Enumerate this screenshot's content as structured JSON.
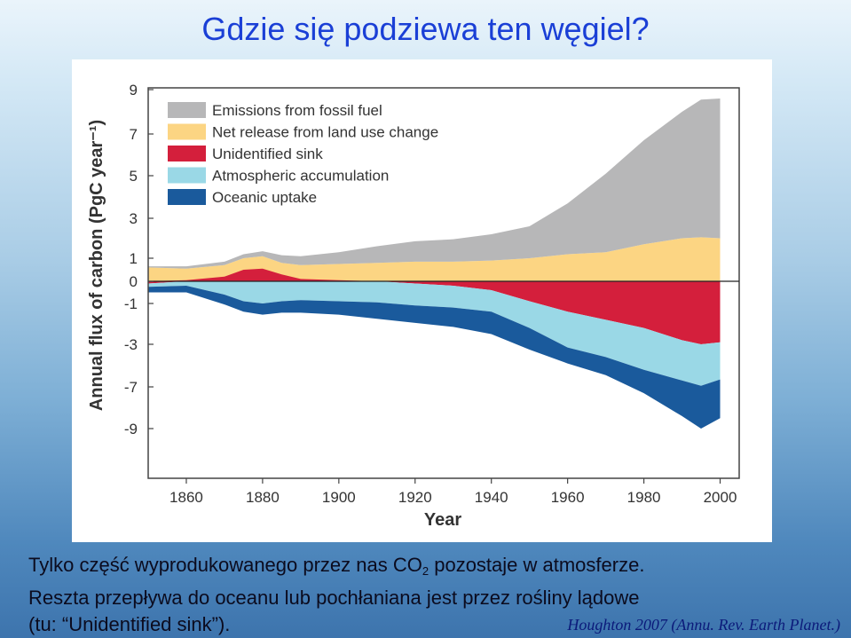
{
  "slide": {
    "title": "Gdzie się podziewa ten węgiel?",
    "caption_line1_before": "Tylko część wyprodukowanego przez nas CO",
    "caption_line1_sub": "2",
    "caption_line1_after": " pozostaje w atmosferze.",
    "caption_line2": "Reszta przepływa do oceanu lub pochłaniana jest przez rośliny lądowe",
    "caption_line3": "(tu: “Unidentified sink”).",
    "citation": "Houghton 2007 (Annu. Rev. Earth Planet.)"
  },
  "chart_data": {
    "type": "area",
    "xlabel": "Year",
    "ylabel": "Annual flux of carbon (PgC year⁻¹)",
    "xlim": [
      1850,
      2005
    ],
    "x_ticks": [
      1860,
      1880,
      1900,
      1920,
      1940,
      1960,
      1980,
      2000
    ],
    "y_ticks": [
      9,
      7,
      5,
      3,
      1,
      0,
      -1,
      -3,
      -7,
      -9
    ],
    "legend_position": "top-left",
    "x": [
      1850,
      1860,
      1870,
      1875,
      1880,
      1885,
      1890,
      1900,
      1910,
      1920,
      1930,
      1940,
      1950,
      1960,
      1970,
      1980,
      1990,
      1995,
      2000
    ],
    "series": [
      {
        "name": "Emissions from fossil fuel",
        "color": "#b7b7b8",
        "values": [
          0.05,
          0.1,
          0.15,
          0.2,
          0.25,
          0.35,
          0.4,
          0.55,
          0.8,
          1.0,
          1.1,
          1.3,
          1.6,
          2.5,
          3.8,
          5.0,
          6.0,
          6.5,
          6.6
        ]
      },
      {
        "name": "Net release from land use change",
        "color": "#fcd583",
        "values": [
          0.6,
          0.55,
          0.7,
          1.0,
          1.1,
          0.8,
          0.7,
          0.75,
          0.8,
          0.85,
          0.85,
          0.9,
          1.0,
          1.2,
          1.3,
          1.7,
          2.0,
          2.05,
          2.0
        ]
      },
      {
        "name": "Unidentified sink",
        "color": "#d41f3c",
        "values": [
          -0.1,
          0.05,
          0.2,
          0.5,
          0.55,
          0.3,
          0.1,
          0.05,
          0.0,
          -0.1,
          -0.2,
          -0.4,
          -0.9,
          -1.4,
          -1.8,
          -2.2,
          -2.8,
          -3.0,
          -2.9
        ]
      },
      {
        "name": "Atmospheric accumulation",
        "color": "#9ad8e6",
        "values": [
          -0.15,
          -0.2,
          -0.6,
          -0.9,
          -1.0,
          -0.9,
          -0.85,
          -0.9,
          -0.95,
          -1.0,
          -1.0,
          -1.0,
          -1.3,
          -1.9,
          -2.4,
          -3.2,
          -3.6,
          -3.9,
          -3.4
        ]
      },
      {
        "name": "Oceanic uptake",
        "color": "#1a5a9c",
        "values": [
          -0.25,
          -0.3,
          -0.45,
          -0.5,
          -0.55,
          -0.55,
          -0.6,
          -0.65,
          -0.8,
          -0.85,
          -0.95,
          -1.1,
          -1.3,
          -1.5,
          -1.7,
          -1.9,
          -2.0,
          -2.1,
          -2.2
        ]
      }
    ]
  }
}
